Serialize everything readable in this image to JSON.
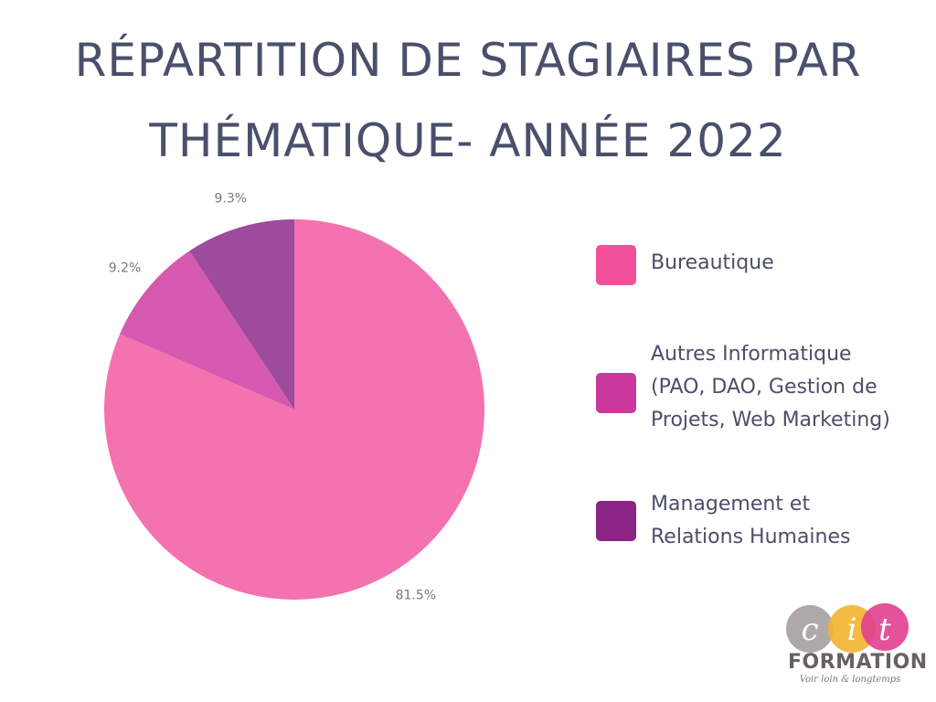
{
  "title": {
    "line1": "RÉPARTITION DE STAGIAIRES PAR",
    "line2": "THÉMATIQUE- ANNÉE 2022"
  },
  "chart_data": {
    "type": "pie",
    "title": "RÉPARTITION DE STAGIAIRES PAR THÉMATIQUE- ANNÉE 2022",
    "slices": [
      {
        "label": "Bureautique",
        "value": 81.5,
        "value_label": "81.5%",
        "color": "#f472b0",
        "legend_color": "#f04f9a"
      },
      {
        "label": "Autres Informatique (PAO, DAO, Gestion de Projets, Web Marketing)",
        "value": 9.2,
        "value_label": "9.2%",
        "color": "#d55aaf",
        "legend_color": "#c9399c"
      },
      {
        "label": "Management et Relations Humaines",
        "value": 9.3,
        "value_label": "9.3%",
        "color": "#9d4b9c",
        "legend_color": "#8a2486"
      }
    ],
    "legend_position": "right"
  },
  "legend": {
    "items": [
      {
        "lines": [
          "Bureautique"
        ],
        "color": "#f04f9a"
      },
      {
        "lines": [
          "Autres Informatique",
          "(PAO, DAO, Gestion de",
          "Projets, Web Marketing)"
        ],
        "color": "#c9399c"
      },
      {
        "lines": [
          "Management et",
          "Relations Humaines"
        ],
        "color": "#8a2486"
      }
    ]
  },
  "logo": {
    "letters": "cit",
    "word": "FORMATION",
    "tagline": "Voir loin & longtemps",
    "colors": [
      "#a09a98",
      "#f2b42f",
      "#e03f8f"
    ]
  }
}
